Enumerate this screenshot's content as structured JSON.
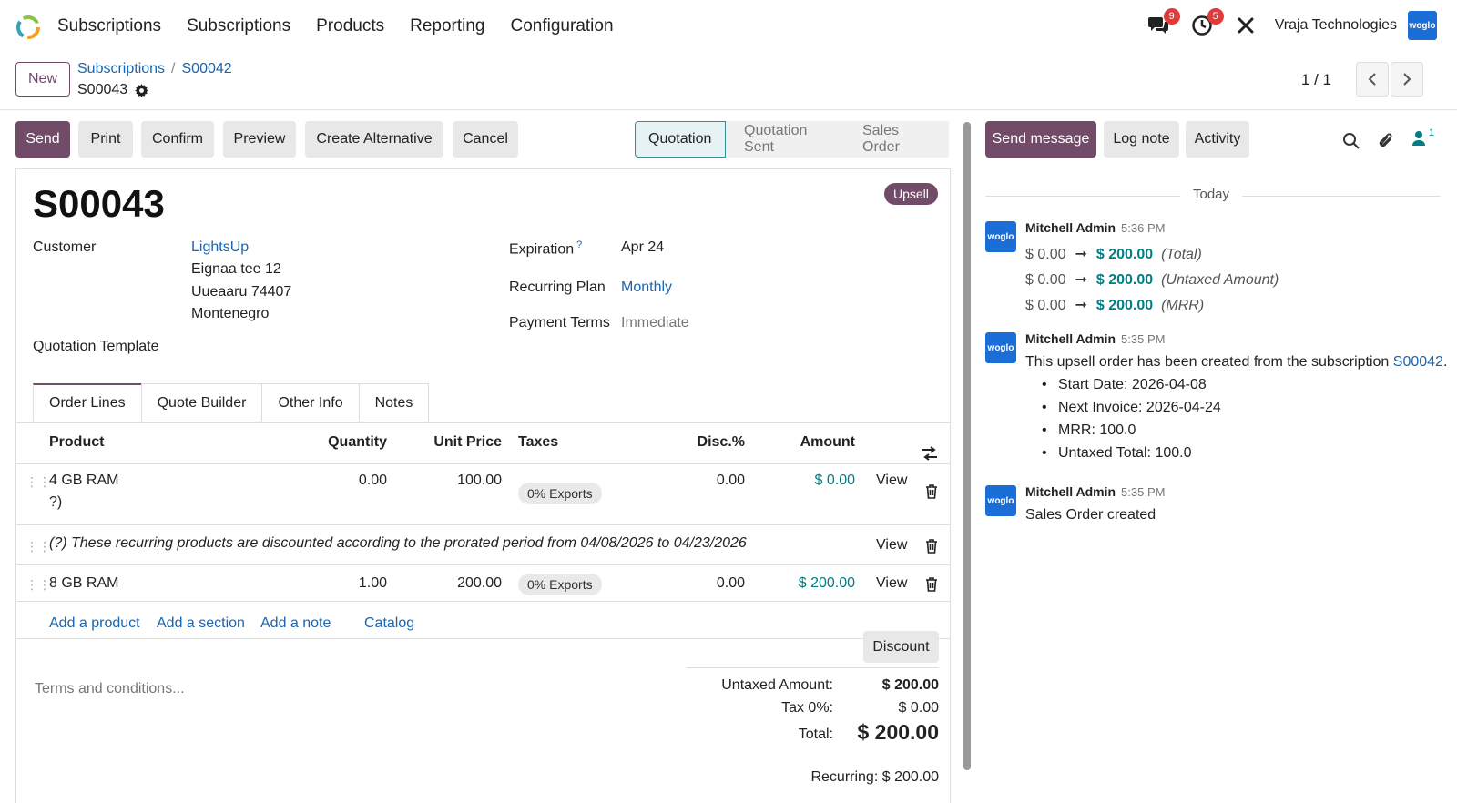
{
  "nav": {
    "menu": [
      "Subscriptions",
      "Subscriptions",
      "Products",
      "Reporting",
      "Configuration"
    ],
    "messages_count": "9",
    "activities_count": "5",
    "company_name": "Vraja Technologies",
    "company_logo_text": "woglo"
  },
  "control_panel": {
    "new_label": "New",
    "breadcrumb": [
      "Subscriptions",
      "S00042"
    ],
    "breadcrumb_sep": "/",
    "record": "S00043",
    "pager": "1 / 1"
  },
  "actions": {
    "send": "Send",
    "print": "Print",
    "confirm": "Confirm",
    "preview": "Preview",
    "create_alternative": "Create Alternative",
    "cancel": "Cancel"
  },
  "statusbar": [
    "Quotation",
    "Quotation Sent",
    "Sales Order"
  ],
  "status_active": "Quotation",
  "form": {
    "name": "S00043",
    "badge": "Upsell",
    "customer_label": "Customer",
    "customer_name": "LightsUp",
    "customer_address": [
      "Eignaa tee 12",
      "Uueaaru 74407",
      "Montenegro"
    ],
    "quotation_template_label": "Quotation Template",
    "expiration_label": "Expiration",
    "expiration_help": "?",
    "expiration_value": "Apr 24",
    "recurring_plan_label": "Recurring Plan",
    "recurring_plan_value": "Monthly",
    "payment_terms_label": "Payment Terms",
    "payment_terms_value": "Immediate"
  },
  "tabs": [
    "Order Lines",
    "Quote Builder",
    "Other Info",
    "Notes"
  ],
  "order_lines": {
    "headers": [
      "Product",
      "Quantity",
      "Unit Price",
      "Taxes",
      "Disc.%",
      "Amount"
    ],
    "rows": [
      {
        "product": "4 GB RAM",
        "product_sub": "?)",
        "quantity": "0.00",
        "unit_price": "100.00",
        "taxes": "0% Exports",
        "discount": "0.00",
        "amount": "$ 0.00",
        "view": "View"
      },
      {
        "product": "8 GB RAM",
        "quantity": "1.00",
        "unit_price": "200.00",
        "taxes": "0% Exports",
        "discount": "0.00",
        "amount": "$ 200.00",
        "view": "View"
      }
    ],
    "note": "(?) These recurring products are discounted according to the prorated period from 04/08/2026 to 04/23/2026",
    "note_view": "View",
    "add_product": "Add a product",
    "add_section": "Add a section",
    "add_note": "Add a note",
    "catalog": "Catalog"
  },
  "totals": {
    "discount_button": "Discount",
    "terms_placeholder": "Terms and conditions...",
    "untaxed_label": "Untaxed Amount:",
    "untaxed_value": "$ 200.00",
    "tax_label": "Tax 0%:",
    "tax_value": "$ 0.00",
    "total_label": "Total:",
    "total_value": "$ 200.00",
    "recurring": "Recurring: $ 200.00"
  },
  "chatter": {
    "send_message": "Send message",
    "log_note": "Log note",
    "activity": "Activity",
    "followers_count": "1",
    "today": "Today",
    "messages": [
      {
        "author": "Mitchell Admin",
        "time": "5:36 PM",
        "avatar": "woglo",
        "tracking": [
          {
            "old": "$ 0.00",
            "new": "$ 200.00",
            "field": "(Total)"
          },
          {
            "old": "$ 0.00",
            "new": "$ 200.00",
            "field": "(Untaxed Amount)"
          },
          {
            "old": "$ 0.00",
            "new": "$ 200.00",
            "field": "(MRR)"
          }
        ]
      },
      {
        "author": "Mitchell Admin",
        "time": "5:35 PM",
        "avatar": "woglo",
        "body": "This upsell order has been created from the subscription",
        "body_link": "S00042",
        "body_end": ".",
        "bullets": [
          "Start Date: 2026-04-08",
          "Next Invoice: 2026-04-24",
          "MRR: 100.0",
          "Untaxed Total: 100.0"
        ]
      },
      {
        "author": "Mitchell Admin",
        "time": "5:35 PM",
        "avatar": "woglo",
        "body": "Sales Order created"
      }
    ]
  },
  "colors": {
    "primary": "#714b67",
    "link": "#1a65b0",
    "positive": "#017e84",
    "badge_red": "#e03a3a"
  }
}
